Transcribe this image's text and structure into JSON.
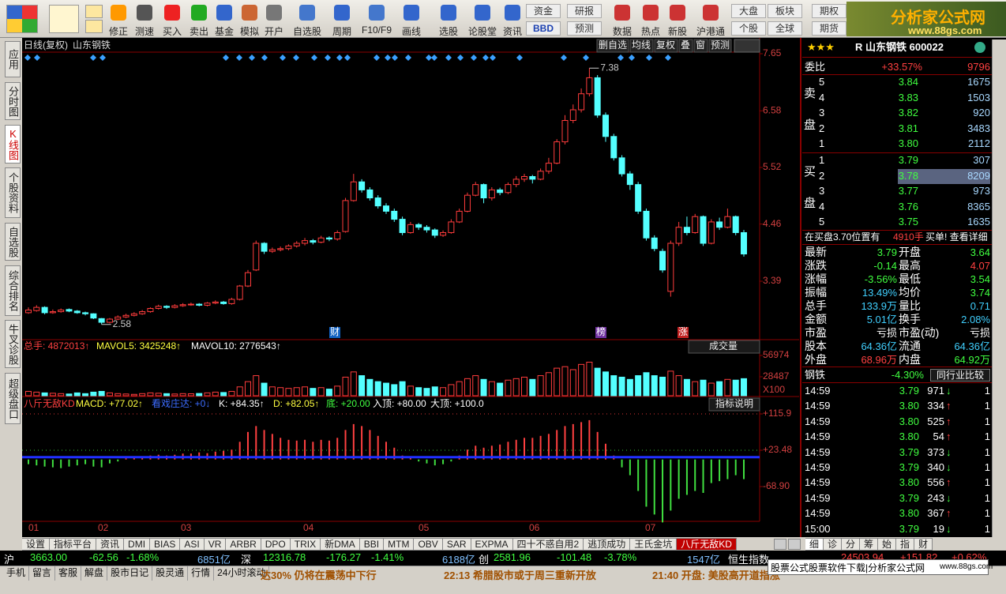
{
  "toolbar": {
    "buttons": [
      "修正",
      "测速",
      "买入",
      "卖出",
      "基金",
      "模拟",
      "开户",
      "自选股",
      "周期",
      "F10/F9",
      "画线",
      "选股",
      "论股堂",
      "资讯",
      "资金",
      "BBD",
      "研报",
      "预测",
      "数据",
      "热点",
      "新股",
      "沪港通",
      "大盘",
      "个股",
      "板块",
      "全球",
      "期权",
      "期货"
    ],
    "logo": {
      "title": "分析家公式网",
      "url": "www.88gs.com"
    }
  },
  "side_tabs": [
    "应用",
    "分时图",
    "K线图",
    "个股资料",
    "自选股",
    "综合排名",
    "牛叉诊股",
    "超级盘口"
  ],
  "chart": {
    "title": "日线(复权)",
    "stock": "山东钢铁",
    "buttons": [
      "删自选",
      "均线",
      "复权",
      "叠",
      "窗",
      "预测"
    ],
    "price_ticks": [
      7.65,
      6.58,
      5.52,
      4.46,
      3.39
    ],
    "high_label": 7.38,
    "low_label": 2.58,
    "events": [
      "财",
      "榜",
      "涨"
    ],
    "months": [
      "01",
      "02",
      "03",
      "04",
      "05",
      "06",
      "07"
    ],
    "candles": [
      [
        2.8,
        2.85,
        2.9,
        2.78
      ],
      [
        2.84,
        2.9,
        2.94,
        2.82
      ],
      [
        2.9,
        2.8,
        2.92,
        2.77
      ],
      [
        2.8,
        2.82,
        2.86,
        2.78
      ],
      [
        2.82,
        2.85,
        2.88,
        2.8
      ],
      [
        2.86,
        2.83,
        2.88,
        2.81
      ],
      [
        2.83,
        2.8,
        2.85,
        2.78
      ],
      [
        2.8,
        2.78,
        2.82,
        2.75
      ],
      [
        2.78,
        2.7,
        2.79,
        2.68
      ],
      [
        2.69,
        2.62,
        2.7,
        2.58
      ],
      [
        2.62,
        2.68,
        2.7,
        2.6
      ],
      [
        2.68,
        2.72,
        2.75,
        2.66
      ],
      [
        2.72,
        2.75,
        2.78,
        2.7
      ],
      [
        2.75,
        2.78,
        2.81,
        2.73
      ],
      [
        2.78,
        2.82,
        2.85,
        2.76
      ],
      [
        2.82,
        2.88,
        2.9,
        2.8
      ],
      [
        2.88,
        2.92,
        2.95,
        2.86
      ],
      [
        2.92,
        2.9,
        2.94,
        2.87
      ],
      [
        2.9,
        2.93,
        2.96,
        2.88
      ],
      [
        2.93,
        2.95,
        2.98,
        2.91
      ],
      [
        2.95,
        2.96,
        2.99,
        2.93
      ],
      [
        2.96,
        2.94,
        2.98,
        2.92
      ],
      [
        2.94,
        2.98,
        3.0,
        2.92
      ],
      [
        2.98,
        3.0,
        3.03,
        2.96
      ],
      [
        3.0,
        2.97,
        3.02,
        2.95
      ],
      [
        2.97,
        3.05,
        3.08,
        2.95
      ],
      [
        3.05,
        3.3,
        3.32,
        3.03
      ],
      [
        3.3,
        3.55,
        3.6,
        3.28
      ],
      [
        3.6,
        4.1,
        4.15,
        3.58
      ],
      [
        4.1,
        3.95,
        4.12,
        3.9
      ],
      [
        3.95,
        3.98,
        4.02,
        3.92
      ],
      [
        3.98,
        4.0,
        4.04,
        3.95
      ],
      [
        4.0,
        4.05,
        4.08,
        3.97
      ],
      [
        4.05,
        4.1,
        4.14,
        4.02
      ],
      [
        4.1,
        4.15,
        4.2,
        4.06
      ],
      [
        4.15,
        4.12,
        4.18,
        4.08
      ],
      [
        4.12,
        4.2,
        4.24,
        4.1
      ],
      [
        4.2,
        4.18,
        4.23,
        4.14
      ],
      [
        4.18,
        4.3,
        4.34,
        4.15
      ],
      [
        4.32,
        4.9,
        4.95,
        4.3
      ],
      [
        4.9,
        5.25,
        5.4,
        4.88
      ],
      [
        5.25,
        5.1,
        5.3,
        5.05
      ],
      [
        5.1,
        4.95,
        5.15,
        4.9
      ],
      [
        4.95,
        4.8,
        5.0,
        4.75
      ],
      [
        4.8,
        4.7,
        4.85,
        4.65
      ],
      [
        4.7,
        4.55,
        4.75,
        4.5
      ],
      [
        4.55,
        4.3,
        4.6,
        4.25
      ],
      [
        4.3,
        4.45,
        4.5,
        4.28
      ],
      [
        4.45,
        4.4,
        4.48,
        4.35
      ],
      [
        4.4,
        4.35,
        4.44,
        4.3
      ],
      [
        4.35,
        4.25,
        4.38,
        4.2
      ],
      [
        4.25,
        4.3,
        4.34,
        4.22
      ],
      [
        4.3,
        4.5,
        4.55,
        4.28
      ],
      [
        4.5,
        4.7,
        4.75,
        4.48
      ],
      [
        4.7,
        5.0,
        5.05,
        4.68
      ],
      [
        5.0,
        5.2,
        5.25,
        4.98
      ],
      [
        5.2,
        4.95,
        5.22,
        4.85
      ],
      [
        4.95,
        5.1,
        5.15,
        4.9
      ],
      [
        5.1,
        5.05,
        5.14,
        5.0
      ],
      [
        5.05,
        5.2,
        5.24,
        5.02
      ],
      [
        5.2,
        5.3,
        5.36,
        5.15
      ],
      [
        5.3,
        5.35,
        5.4,
        5.25
      ],
      [
        5.35,
        5.3,
        5.38,
        5.22
      ],
      [
        5.3,
        5.45,
        5.5,
        5.28
      ],
      [
        5.45,
        5.6,
        5.7,
        5.4
      ],
      [
        5.6,
        6.0,
        6.05,
        5.58
      ],
      [
        6.0,
        6.4,
        6.5,
        5.95
      ],
      [
        6.4,
        6.6,
        6.7,
        6.35
      ],
      [
        6.6,
        6.9,
        7.0,
        6.55
      ],
      [
        6.9,
        7.2,
        7.38,
        6.85
      ],
      [
        7.2,
        6.5,
        7.25,
        6.45
      ],
      [
        6.5,
        6.1,
        6.55,
        6.0
      ],
      [
        6.1,
        5.7,
        6.15,
        5.65
      ],
      [
        5.7,
        5.4,
        5.75,
        5.35
      ],
      [
        5.4,
        5.2,
        5.45,
        5.1
      ],
      [
        5.2,
        4.7,
        5.25,
        4.65
      ],
      [
        4.7,
        4.2,
        4.75,
        4.15
      ],
      [
        4.2,
        4.0,
        4.25,
        3.95
      ],
      [
        3.95,
        3.6,
        4.0,
        3.55
      ],
      [
        3.2,
        4.1,
        4.15,
        3.1
      ],
      [
        4.1,
        4.4,
        4.5,
        4.05
      ],
      [
        4.4,
        4.3,
        4.6,
        4.25
      ],
      [
        4.3,
        4.6,
        4.65,
        4.28
      ],
      [
        4.6,
        4.1,
        4.62,
        4.05
      ],
      [
        4.1,
        4.5,
        4.55,
        4.08
      ],
      [
        4.5,
        4.4,
        4.58,
        4.35
      ],
      [
        4.4,
        4.6,
        4.75,
        4.38
      ],
      [
        4.6,
        4.3,
        4.62,
        4.25
      ],
      [
        4.3,
        3.9,
        4.35,
        3.85
      ]
    ]
  },
  "volume": {
    "legend": [
      "总手: 4872013↑",
      "MAVOL5: 3425248↑",
      "MAVOL10: 2776543↑"
    ],
    "selector": "成交量",
    "ticks": [
      56974,
      28487
    ],
    "unit": "X100",
    "values": [
      9000,
      8000,
      7000,
      6500,
      6000,
      5500,
      7000,
      6000,
      8000,
      9000,
      7000,
      6000,
      5500,
      5000,
      6000,
      7000,
      6500,
      6000,
      5500,
      6000,
      5800,
      6200,
      7000,
      8000,
      7500,
      9000,
      15000,
      22000,
      30000,
      20000,
      15000,
      14000,
      13000,
      14000,
      15000,
      13000,
      14000,
      12000,
      16000,
      28000,
      35000,
      30000,
      25000,
      22000,
      20000,
      18000,
      22000,
      16000,
      14000,
      13000,
      15000,
      14000,
      18000,
      22000,
      26000,
      30000,
      25000,
      22000,
      20000,
      24000,
      26000,
      28000,
      25000,
      30000,
      34000,
      40000,
      42000,
      38000,
      45000,
      48000,
      40000,
      35000,
      30000,
      28000,
      25000,
      30000,
      34000,
      30000,
      28000,
      36000,
      30000,
      25000,
      22000,
      24000,
      20000,
      22000,
      25000,
      24000,
      26000
    ]
  },
  "indicator": {
    "legend": [
      "八斤无敌KD",
      "MACD: +77.02↑",
      "看戏庄达: +0↓",
      "K: +84.35↑",
      "D: +82.05↑",
      "底: +20.00",
      "入顶: +80.00",
      "大顶: +100.0"
    ],
    "help": "指标说明",
    "ticks": [
      {
        "value": 115.9,
        "label": "+115.9"
      },
      {
        "value": 23.48,
        "label": "+23.48"
      },
      {
        "value": -68.9,
        "label": "-68.90"
      }
    ],
    "hist": [
      -12,
      -15,
      -18,
      -20,
      -22,
      -18,
      -15,
      -12,
      -18,
      -20,
      -10,
      -5,
      3,
      6,
      8,
      10,
      12,
      10,
      12,
      15,
      15,
      18,
      16,
      20,
      22,
      25,
      45,
      70,
      85,
      75,
      65,
      55,
      50,
      48,
      50,
      45,
      50,
      48,
      55,
      75,
      90,
      85,
      75,
      60,
      45,
      30,
      10,
      5,
      -5,
      -10,
      -15,
      -12,
      -5,
      10,
      25,
      35,
      30,
      35,
      38,
      45,
      50,
      55,
      55,
      60,
      65,
      75,
      85,
      90,
      95,
      100,
      70,
      40,
      10,
      -20,
      -40,
      -80,
      -120,
      -140,
      -160,
      -130,
      -100,
      -90,
      -80,
      -85,
      -60,
      -55,
      -50,
      -40,
      -50
    ]
  },
  "bottom_tabs": [
    "设置",
    "指标平台",
    "资讯",
    "DMI",
    "BIAS",
    "ASI",
    "VR",
    "ARBR",
    "DPO",
    "TRIX",
    "新DMA",
    "BBI",
    "MTM",
    "OBV",
    "SAR",
    "EXPMA",
    "四十不惑自用2",
    "逃顶成功",
    "王氏金坑",
    "八斤无敌KD"
  ],
  "panel_tabs": [
    "细",
    "诊",
    "分",
    "筹",
    "始",
    "指",
    "财"
  ],
  "indices": [
    "沪",
    "3663.00",
    "-62.56",
    "-1.68%",
    "6851亿",
    "深",
    "12316.78",
    "-176.27",
    "-1.41%",
    "6188亿",
    "创",
    "2581.96",
    "-101.48",
    "-3.78%",
    "1547亿",
    "恒生指数",
    "24503.94",
    "+151.82",
    "+0.62%"
  ],
  "status": {
    "links": [
      "手机",
      "留言",
      "客服",
      "解盘",
      "股市日记",
      "股灵通",
      "行情",
      "24小时滚动"
    ],
    "news": [
      "达30% 仍将在震荡中下行",
      "22:13 希腊股市或于周三重新开放",
      "21:40 开盘: 美股高开道指涨"
    ],
    "popup": [
      "股票公式股票软件下载|分析家公式网",
      "www.88gs.com"
    ]
  },
  "quote": {
    "stars": "★★★",
    "name": "R 山东钢铁 600022",
    "ratio": [
      "委比",
      "+33.57%",
      "9796"
    ],
    "sell": {
      "label": [
        "卖",
        "盘"
      ],
      "rows": [
        [
          "5",
          "3.84",
          "1675"
        ],
        [
          "4",
          "3.83",
          "1503"
        ],
        [
          "3",
          "3.82",
          "920"
        ],
        [
          "2",
          "3.81",
          "3483"
        ],
        [
          "1",
          "3.80",
          "2112"
        ]
      ]
    },
    "buy": {
      "label": [
        "买",
        "盘"
      ],
      "rows": [
        [
          "1",
          "3.79",
          "307"
        ],
        [
          "2",
          "3.78",
          "8209"
        ],
        [
          "3",
          "3.77",
          "973"
        ],
        [
          "4",
          "3.76",
          "8365"
        ],
        [
          "5",
          "3.75",
          "1635"
        ]
      ]
    },
    "notice": [
      "在买盘3.70位置有",
      "4910手",
      "买单! 查看详细"
    ],
    "stats": [
      [
        "最新",
        "3.79",
        "开盘",
        "3.64"
      ],
      [
        "涨跌",
        "-0.14",
        "最高",
        "4.07"
      ],
      [
        "涨幅",
        "-3.56%",
        "最低",
        "3.54"
      ],
      [
        "振幅",
        "13.49%",
        "均价",
        "3.74"
      ],
      [
        "总手",
        "133.9万",
        "量比",
        "0.71"
      ],
      [
        "金额",
        "5.01亿",
        "换手",
        "2.08%"
      ],
      [
        "市盈",
        "亏损",
        "市盈(动)",
        "亏损"
      ],
      [
        "股本",
        "64.36亿",
        "流通",
        "64.36亿"
      ],
      [
        "外盘",
        "68.96万",
        "内盘",
        "64.92万"
      ]
    ],
    "sector": [
      "钢铁",
      "-4.30%",
      "同行业比较"
    ],
    "ticks": [
      [
        "14:59",
        "3.79",
        "971",
        "↓",
        "1"
      ],
      [
        "14:59",
        "3.80",
        "334",
        "↑",
        "1"
      ],
      [
        "14:59",
        "3.80",
        "525",
        "↑",
        "1"
      ],
      [
        "14:59",
        "3.80",
        "54",
        "↑",
        "1"
      ],
      [
        "14:59",
        "3.79",
        "373",
        "↓",
        "1"
      ],
      [
        "14:59",
        "3.79",
        "340",
        "↓",
        "1"
      ],
      [
        "14:59",
        "3.80",
        "556",
        "↑",
        "1"
      ],
      [
        "14:59",
        "3.79",
        "243",
        "↓",
        "1"
      ],
      [
        "14:59",
        "3.80",
        "367",
        "↑",
        "1"
      ],
      [
        "15:00",
        "3.79",
        "19",
        "↓",
        "1"
      ]
    ]
  }
}
